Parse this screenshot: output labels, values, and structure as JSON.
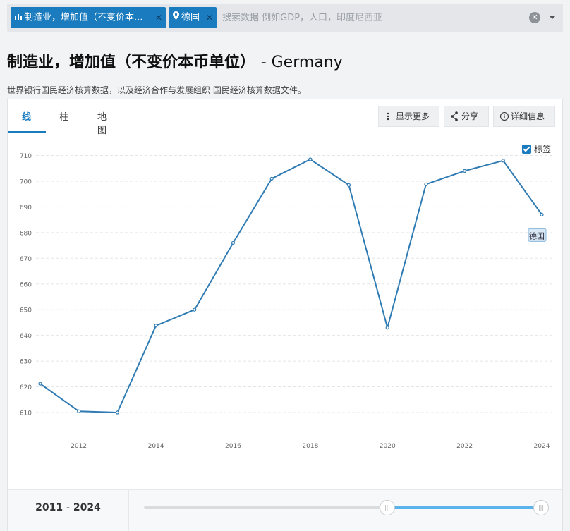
{
  "search": {
    "chip_indicator": "制造业，增加值（不变价本...",
    "chip_country": "德国",
    "placeholder": "搜索数据 例如GDP，人口，印度尼西亚"
  },
  "header": {
    "title": "制造业，增加值（不变价本币单位）",
    "country": "- Germany",
    "source": "世界银行国民经济核算数据，以及经济合作与发展组织 国民经济核算数据文件。"
  },
  "tabs": [
    {
      "label": "线",
      "active": true
    },
    {
      "label": "柱",
      "active": false
    },
    {
      "label": "地图",
      "active": false
    }
  ],
  "actions": {
    "more": "显示更多",
    "share": "分享",
    "details": "详细信息"
  },
  "labels_toggle": {
    "label": "标签",
    "checked": true
  },
  "range": {
    "start": "2011",
    "end": "2024"
  },
  "colors": {
    "accent": "#1a7bbf",
    "line": "#2f7bb3",
    "slider_fill": "#5ab3ea"
  },
  "chart_data": {
    "type": "line",
    "title": "",
    "xlabel": "",
    "ylabel": "",
    "x": [
      2011,
      2012,
      2013,
      2014,
      2015,
      2016,
      2017,
      2018,
      2019,
      2020,
      2021,
      2022,
      2023,
      2024
    ],
    "series": [
      {
        "name": "德国",
        "values": [
          621.2,
          610.5,
          610.0,
          643.8,
          650.0,
          676.0,
          701.0,
          708.5,
          698.5,
          643.0,
          698.8,
          704.0,
          708.0,
          687.0
        ]
      }
    ],
    "yticks": [
      610,
      620,
      630,
      640,
      650,
      660,
      670,
      680,
      690,
      700,
      710
    ],
    "xticks": [
      2012,
      2014,
      2016,
      2018,
      2020,
      2022,
      2024
    ],
    "ylim": [
      605,
      715
    ],
    "xlim": [
      2011,
      2024
    ],
    "grid": true
  }
}
